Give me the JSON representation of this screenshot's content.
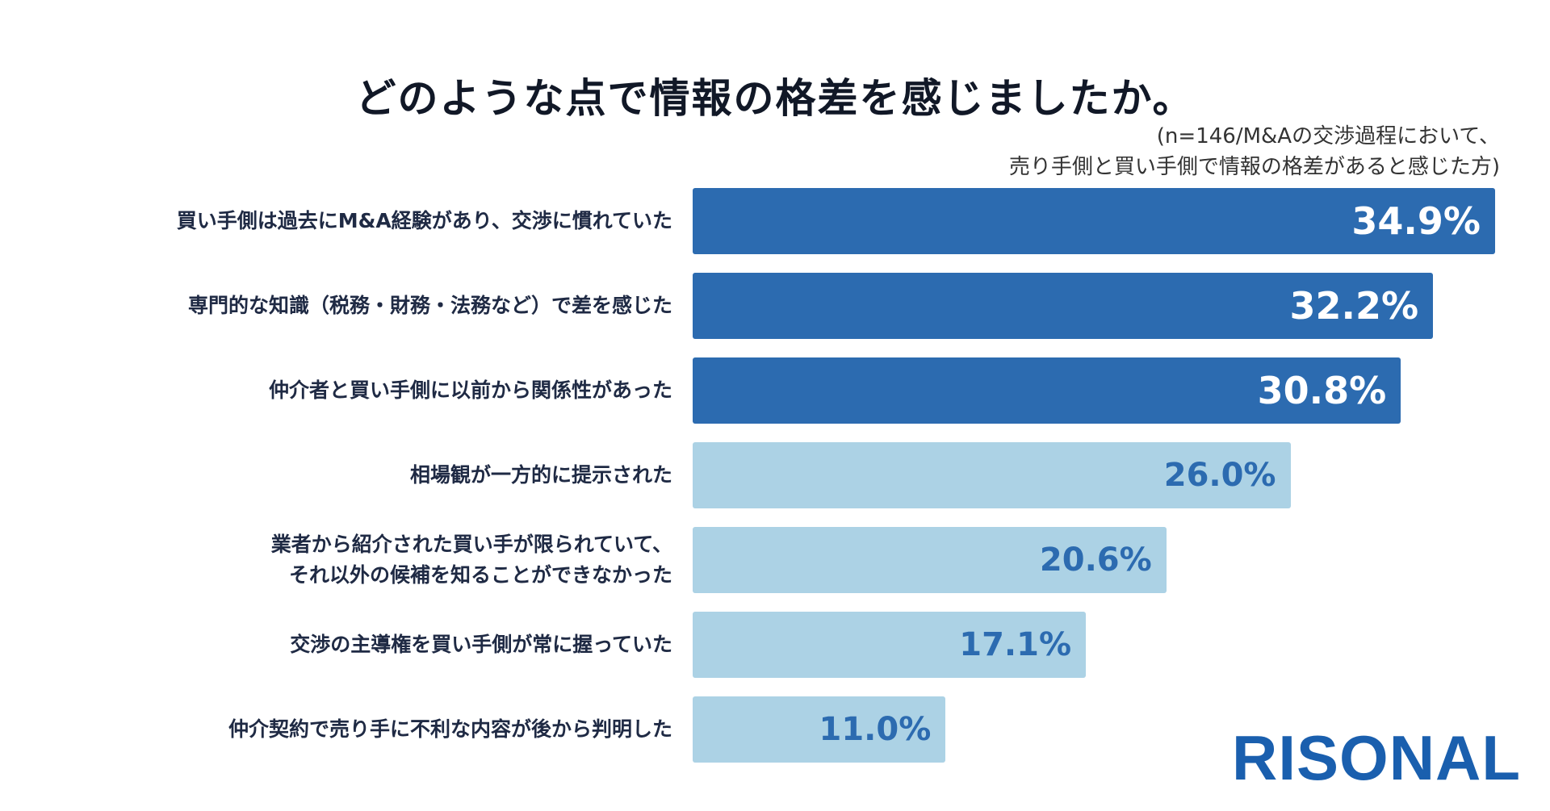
{
  "title": "どのような点で情報の格差を感じましたか。",
  "note": {
    "line1": "(n=146/M&Aの交渉過程において、",
    "line2": "売り手側と買い手側で情報の格差があると感じた方)"
  },
  "brand": {
    "name": "RISONAL",
    "color": "#1a5fae"
  },
  "colors": {
    "highlight_bar": "#2c6bb0",
    "other_bar": "#acd2e5"
  },
  "chart_data": {
    "type": "bar",
    "orientation": "horizontal",
    "title": "どのような点で情報の格差を感じましたか。",
    "unit": "%",
    "xlim": [
      0,
      34.9
    ],
    "categories": [
      [
        "買い手側は過去にM&A経験があり、交渉に慣れていた"
      ],
      [
        "専門的な知識（税務・財務・法務など）で差を感じた"
      ],
      [
        "仲介者と買い手側に以前から関係性があった"
      ],
      [
        "相場観が一方的に提示された"
      ],
      [
        "業者から紹介された買い手が限られていて、",
        "それ以外の候補を知ることができなかった"
      ],
      [
        "交渉の主導権を買い手側が常に握っていた"
      ],
      [
        "仲介契約で売り手に不利な内容が後から判明した"
      ]
    ],
    "values": [
      34.9,
      32.2,
      30.8,
      26.0,
      20.6,
      17.1,
      11.0
    ],
    "value_labels": [
      "34.9%",
      "32.2%",
      "30.8%",
      "26.0%",
      "20.6%",
      "17.1%",
      "11.0%"
    ],
    "highlighted_count": 3
  }
}
